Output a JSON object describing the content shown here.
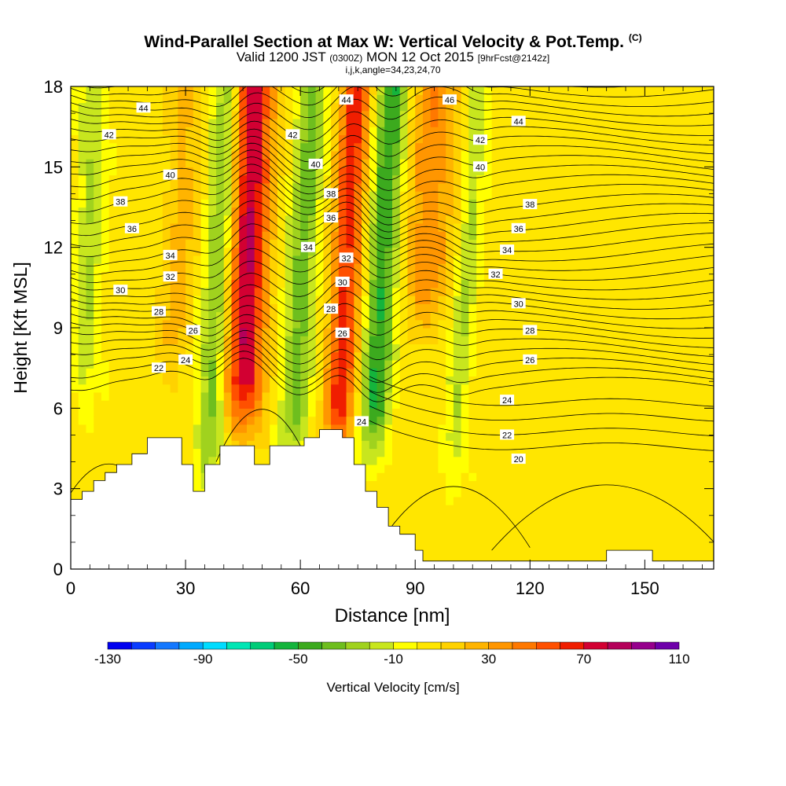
{
  "title": {
    "main": "Wind-Parallel Section at Max W: Vertical Velocity & Pot.Temp.",
    "copyright": "(C)",
    "valid_prefix": "Valid 1200 JST",
    "valid_utc": "(0300Z)",
    "valid_date": "MON 12 Oct 2015",
    "forecast_tag": "[9hrFcst@2142z]",
    "section_params": "i,j,k,angle=34,23,24,70"
  },
  "chart_data": {
    "type": "heatmap",
    "xlabel": "Distance [nm]",
    "ylabel": "Height [Kft MSL]",
    "xlim": [
      0,
      168
    ],
    "ylim": [
      0,
      18
    ],
    "xticks": [
      0,
      30,
      60,
      90,
      120,
      150
    ],
    "yticks": [
      0,
      3,
      6,
      9,
      12,
      15,
      18
    ],
    "colorbar": {
      "label": "Vertical Velocity [cm/s]",
      "tick_labels": [
        "-130",
        "-90",
        "-50",
        "-10",
        "30",
        "70",
        "110"
      ],
      "tick_values": [
        -130,
        -90,
        -50,
        -10,
        30,
        70,
        110
      ],
      "levels": [
        -130,
        -120,
        -110,
        -100,
        -90,
        -80,
        -70,
        -60,
        -50,
        -40,
        -30,
        -20,
        -10,
        0,
        10,
        20,
        30,
        40,
        50,
        60,
        70,
        80,
        90,
        100,
        110
      ],
      "colors": [
        "#0000f0",
        "#0a3cff",
        "#1478ff",
        "#00aaff",
        "#00dcff",
        "#00e6b4",
        "#00cc78",
        "#14b43c",
        "#3caa1e",
        "#6ebe1e",
        "#a0d21e",
        "#c8e61e",
        "#ffff00",
        "#ffe600",
        "#ffd200",
        "#ffb400",
        "#ff9600",
        "#ff7800",
        "#ff5000",
        "#f01e00",
        "#d20032",
        "#b4005a",
        "#96008c",
        "#6e00aa"
      ]
    },
    "theta_contour_labels_K": [
      {
        "x": 19,
        "y": 17.2,
        "t": "44"
      },
      {
        "x": 72,
        "y": 17.5,
        "t": "44"
      },
      {
        "x": 99,
        "y": 17.5,
        "t": "46"
      },
      {
        "x": 117,
        "y": 16.7,
        "t": "44"
      },
      {
        "x": 10,
        "y": 16.2,
        "t": "42"
      },
      {
        "x": 58,
        "y": 16.2,
        "t": "42"
      },
      {
        "x": 107,
        "y": 16.0,
        "t": "42"
      },
      {
        "x": 64,
        "y": 15.1,
        "t": "40"
      },
      {
        "x": 107,
        "y": 15.0,
        "t": "40"
      },
      {
        "x": 26,
        "y": 14.7,
        "t": "40"
      },
      {
        "x": 13,
        "y": 13.7,
        "t": "38"
      },
      {
        "x": 68,
        "y": 14.0,
        "t": "38"
      },
      {
        "x": 120,
        "y": 13.6,
        "t": "38"
      },
      {
        "x": 16,
        "y": 12.7,
        "t": "36"
      },
      {
        "x": 68,
        "y": 13.1,
        "t": "36"
      },
      {
        "x": 117,
        "y": 12.7,
        "t": "36"
      },
      {
        "x": 62,
        "y": 12.0,
        "t": "34"
      },
      {
        "x": 26,
        "y": 11.7,
        "t": "34"
      },
      {
        "x": 114,
        "y": 11.9,
        "t": "34"
      },
      {
        "x": 72,
        "y": 11.6,
        "t": "32"
      },
      {
        "x": 26,
        "y": 10.9,
        "t": "32"
      },
      {
        "x": 111,
        "y": 11.0,
        "t": "32"
      },
      {
        "x": 13,
        "y": 10.4,
        "t": "30"
      },
      {
        "x": 71,
        "y": 10.7,
        "t": "30"
      },
      {
        "x": 117,
        "y": 9.9,
        "t": "30"
      },
      {
        "x": 23,
        "y": 9.6,
        "t": "28"
      },
      {
        "x": 68,
        "y": 9.7,
        "t": "28"
      },
      {
        "x": 120,
        "y": 8.9,
        "t": "28"
      },
      {
        "x": 32,
        "y": 8.9,
        "t": "26"
      },
      {
        "x": 71,
        "y": 8.8,
        "t": "26"
      },
      {
        "x": 120,
        "y": 7.8,
        "t": "26"
      },
      {
        "x": 30,
        "y": 7.8,
        "t": "24"
      },
      {
        "x": 23,
        "y": 7.5,
        "t": "22"
      },
      {
        "x": 76,
        "y": 5.5,
        "t": "24"
      },
      {
        "x": 114,
        "y": 6.3,
        "t": "24"
      },
      {
        "x": 114,
        "y": 5.0,
        "t": "22"
      },
      {
        "x": 117,
        "y": 4.1,
        "t": "20"
      }
    ],
    "terrain_height_kft": [
      {
        "x": 0,
        "h": 2.6
      },
      {
        "x": 3,
        "h": 2.9
      },
      {
        "x": 6,
        "h": 3.3
      },
      {
        "x": 9,
        "h": 3.6
      },
      {
        "x": 12,
        "h": 3.9
      },
      {
        "x": 16,
        "h": 4.3
      },
      {
        "x": 20,
        "h": 4.9
      },
      {
        "x": 29,
        "h": 3.9
      },
      {
        "x": 32,
        "h": 2.9
      },
      {
        "x": 35,
        "h": 3.9
      },
      {
        "x": 39,
        "h": 4.6
      },
      {
        "x": 48,
        "h": 3.9
      },
      {
        "x": 52,
        "h": 4.6
      },
      {
        "x": 61,
        "h": 4.9
      },
      {
        "x": 65,
        "h": 5.2
      },
      {
        "x": 71,
        "h": 4.9
      },
      {
        "x": 74,
        "h": 3.9
      },
      {
        "x": 77,
        "h": 2.9
      },
      {
        "x": 80,
        "h": 2.3
      },
      {
        "x": 83,
        "h": 1.6
      },
      {
        "x": 86,
        "h": 1.3
      },
      {
        "x": 90,
        "h": 0.7
      },
      {
        "x": 92,
        "h": 0.3
      },
      {
        "x": 140,
        "h": 0.7
      },
      {
        "x": 152,
        "h": 0.3
      }
    ],
    "updraft_bands": [
      {
        "x0": 45,
        "tilt": 0.25,
        "w": 5,
        "amp": 75,
        "zmin": 6
      },
      {
        "x0": 70,
        "tilt": 0.35,
        "w": 4,
        "amp": 60,
        "zmin": 5
      },
      {
        "x0": 92,
        "tilt": 0.5,
        "w": 6,
        "amp": 35,
        "zmin": 10
      },
      {
        "x0": 27,
        "tilt": 0.35,
        "w": 4,
        "amp": 20,
        "zmin": 8
      }
    ],
    "downdraft_bands": [
      {
        "x0": 36,
        "tilt": 0.35,
        "w": 3.5,
        "amp": -40,
        "zmin": 4
      },
      {
        "x0": 58,
        "tilt": 0.4,
        "w": 4,
        "amp": -40,
        "zmin": 5
      },
      {
        "x0": 79,
        "tilt": 0.4,
        "w": 4,
        "amp": -55,
        "zmin": 5
      },
      {
        "x0": 4,
        "tilt": 0.15,
        "w": 3.5,
        "amp": -25,
        "zmin": 7
      },
      {
        "x0": 100,
        "tilt": 0.5,
        "w": 3,
        "amp": -25,
        "zmin": 4
      }
    ]
  }
}
